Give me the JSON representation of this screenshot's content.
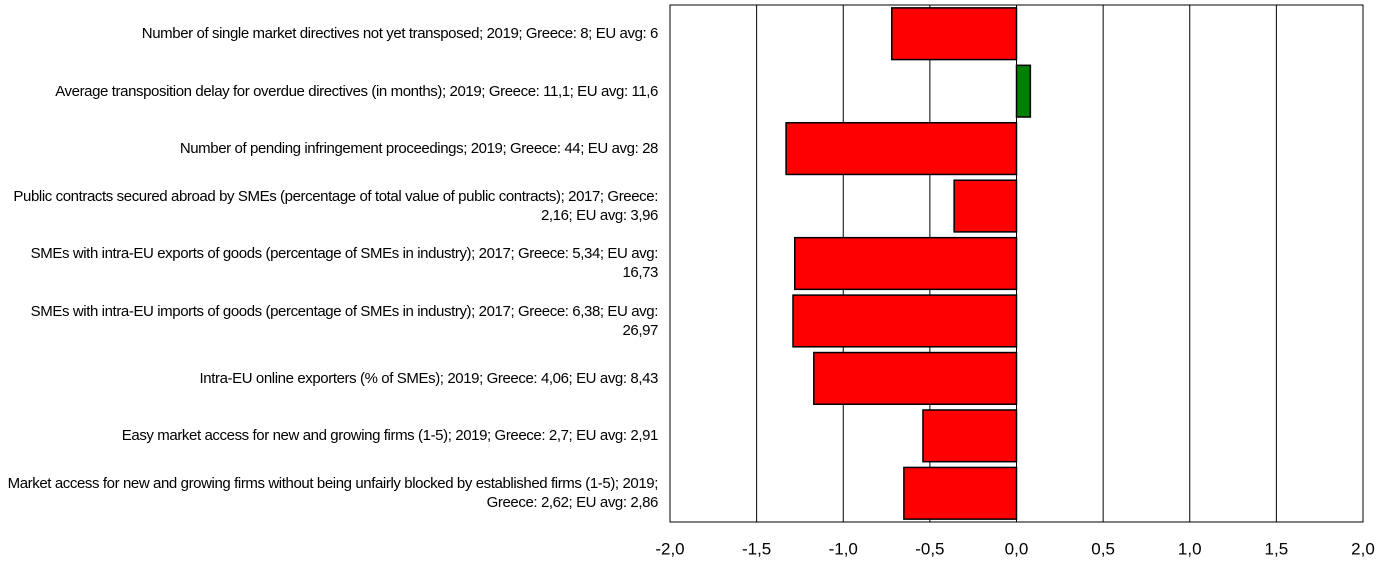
{
  "chart_data": {
    "type": "bar",
    "orientation": "horizontal",
    "categories": [
      "Number of single market directives not yet transposed; 2019; Greece: 8; EU avg: 6",
      "Average transposition delay for overdue directives (in months); 2019; Greece: 11,1; EU avg: 11,6",
      "Number of pending infringement proceedings; 2019; Greece: 44; EU avg: 28",
      "Public contracts secured abroad by SMEs (percentage of total value of public contracts); 2017; Greece: 2,16; EU avg: 3,96",
      "SMEs with intra-EU exports of goods (percentage of SMEs in industry); 2017; Greece: 5,34; EU avg: 16,73",
      "SMEs with intra-EU imports of goods (percentage of SMEs in industry); 2017; Greece: 6,38; EU avg: 26,97",
      "Intra-EU online exporters (% of SMEs); 2019; Greece: 4,06; EU avg: 8,43",
      "Easy market access for new and growing firms (1-5); 2019; Greece: 2,7; EU avg: 2,91",
      "Market access for new and growing firms without being unfairly blocked by established firms (1-5); 2019; Greece: 2,62; EU avg: 2,86"
    ],
    "values": [
      -0.72,
      0.08,
      -1.33,
      -0.36,
      -1.28,
      -1.29,
      -1.17,
      -0.54,
      -0.65
    ],
    "colors": [
      "#ff0000",
      "#008000",
      "#ff0000",
      "#ff0000",
      "#ff0000",
      "#ff0000",
      "#ff0000",
      "#ff0000",
      "#ff0000"
    ],
    "xlim": [
      -2.0,
      2.0
    ],
    "xticks": [
      {
        "value": -2.0,
        "label": "-2,0"
      },
      {
        "value": -1.5,
        "label": "-1,5"
      },
      {
        "value": -1.0,
        "label": "-1,0"
      },
      {
        "value": -0.5,
        "label": "-0,5"
      },
      {
        "value": 0.0,
        "label": "0,0"
      },
      {
        "value": 0.5,
        "label": "0,5"
      },
      {
        "value": 1.0,
        "label": "1,0"
      },
      {
        "value": 1.5,
        "label": "1,5"
      },
      {
        "value": 2.0,
        "label": "2,0"
      }
    ],
    "grid": true
  }
}
